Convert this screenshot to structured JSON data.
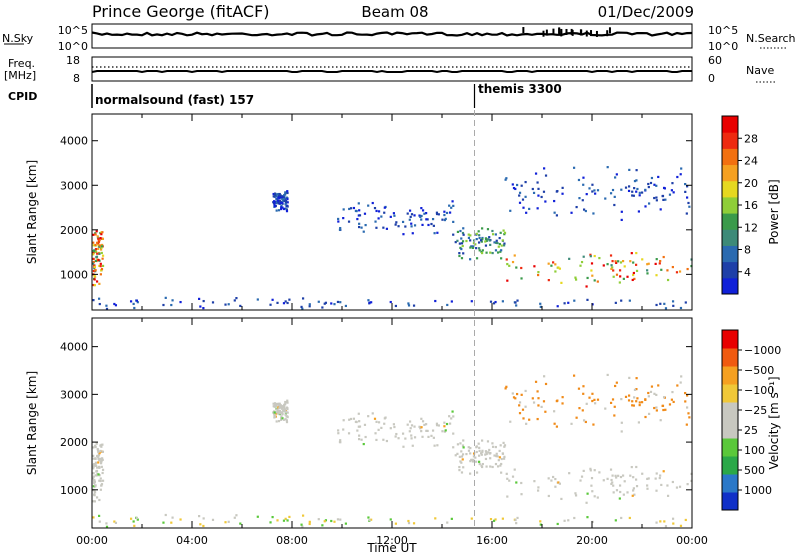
{
  "header": {
    "station": "Prince George (fitACF)",
    "beam": "Beam 08",
    "date": "01/Dec/2009"
  },
  "strip1": {
    "left_label": "N.Sky",
    "left_top_tick": "10^5",
    "left_bottom_tick": "10^0",
    "right_top_tick": "10^5",
    "right_bottom_tick": "10^0",
    "right_label": "N.Search"
  },
  "strip2": {
    "left_label_1": "Freq.",
    "left_label_2": "[MHz]",
    "left_top_tick": "18",
    "left_bottom_tick": "8",
    "right_top_tick": "60",
    "right_bottom_tick": "0",
    "right_label": "Nave"
  },
  "cpid": {
    "label": "CPID",
    "mode1": "normalsound (fast) 157",
    "mode2": "themis 3300",
    "mode_change_hour": 15.3
  },
  "colors": {
    "power": [
      "#1020d8",
      "#1e3fa8",
      "#2a6ab0",
      "#3d8a78",
      "#3a9a4a",
      "#8fce38",
      "#e6d820",
      "#f5a020",
      "#f27010",
      "#ee2a10",
      "#e80000"
    ],
    "velocity": [
      "#e80000",
      "#f05a10",
      "#f5a020",
      "#f0c838",
      "#c8c8c0",
      "#c8c8c0",
      "#5ac83a",
      "#2aa848",
      "#2a78c8",
      "#1030c8"
    ],
    "ground_scatter": "#c8c8c0"
  },
  "chart_data": [
    {
      "type": "heatmap",
      "name": "power",
      "ylabel": "Slant Range [km]",
      "yticks": [
        "1000",
        "2000",
        "3000",
        "4000"
      ],
      "ylim": [
        200,
        4600
      ],
      "xlim": [
        0,
        24
      ],
      "colorbar_label": "Power [dB]",
      "colorbar_ticks": [
        "4",
        "8",
        "12",
        "16",
        "20",
        "24",
        "28"
      ],
      "features": [
        {
          "t0": 0.0,
          "t1": 0.4,
          "r0": 700,
          "r1": 2100,
          "level": "high"
        },
        {
          "t0": 7.2,
          "t1": 7.8,
          "r0": 2400,
          "r1": 2900,
          "level": "low"
        },
        {
          "t0": 9.8,
          "t1": 14.5,
          "r0": 1800,
          "r1": 2700,
          "level": "low"
        },
        {
          "t0": 14.5,
          "t1": 16.5,
          "r0": 1300,
          "r1": 2100,
          "level": "medium"
        },
        {
          "t0": 16.5,
          "t1": 24.0,
          "r0": 700,
          "r1": 1600,
          "level": "high"
        },
        {
          "t0": 16.5,
          "t1": 24.0,
          "r0": 2200,
          "r1": 3500,
          "level": "low"
        },
        {
          "t0": 0.0,
          "t1": 24.0,
          "r0": 200,
          "r1": 500,
          "level": "low"
        }
      ]
    },
    {
      "type": "heatmap",
      "name": "velocity",
      "ylabel": "Slant Range [km]",
      "yticks": [
        "1000",
        "2000",
        "3000",
        "4000"
      ],
      "ylim": [
        200,
        4600
      ],
      "xlim": [
        0,
        24
      ],
      "colorbar_label": "Velocity [m s⁻¹]",
      "colorbar_ticks": [
        "1000",
        "500",
        "100",
        "25",
        "−25",
        "−100",
        "−500",
        "−1000"
      ],
      "xticks": [
        "00:00",
        "04:00",
        "08:00",
        "12:00",
        "16:00",
        "20:00",
        "00:00"
      ],
      "xlabel": "Time UT"
    }
  ]
}
